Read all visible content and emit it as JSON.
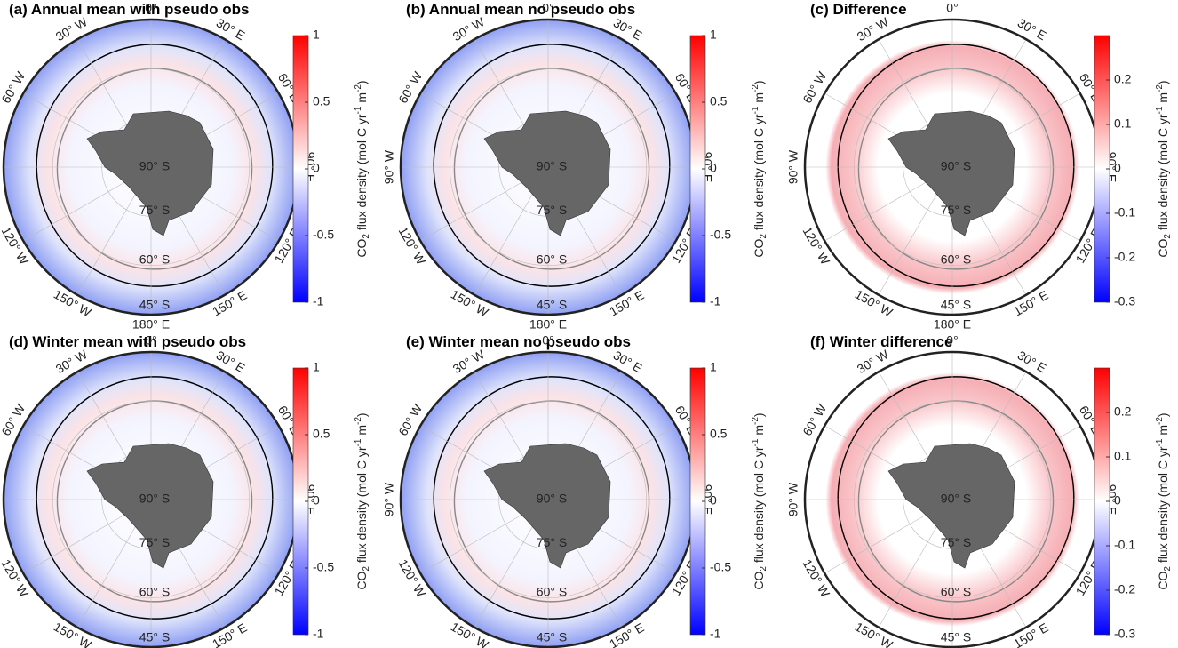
{
  "panels": [
    {
      "title": "(a) Annual mean with pseudo obs",
      "kind": "mean",
      "colorbar": {
        "lim": [
          -1,
          1
        ],
        "ticks": [
          1,
          0.5,
          0,
          -0.5,
          -1
        ]
      }
    },
    {
      "title": "(b) Annual mean no pseudo obs",
      "kind": "mean",
      "colorbar": {
        "lim": [
          -1,
          1
        ],
        "ticks": [
          1,
          0.5,
          0,
          -0.5,
          -1
        ]
      }
    },
    {
      "title": "(c) Difference",
      "kind": "difference",
      "colorbar": {
        "lim": [
          -0.3,
          0.3
        ],
        "ticks": [
          0.2,
          0.1,
          0,
          -0.1,
          -0.2,
          -0.3
        ]
      }
    },
    {
      "title": "(d) Winter mean with pseudo obs",
      "kind": "mean",
      "colorbar": {
        "lim": [
          -1,
          1
        ],
        "ticks": [
          1,
          0.5,
          0,
          -0.5,
          -1
        ]
      }
    },
    {
      "title": "(e) Winter mean no pseudo obs",
      "kind": "mean",
      "colorbar": {
        "lim": [
          -1,
          1
        ],
        "ticks": [
          1,
          0.5,
          0,
          -0.5,
          -1
        ]
      }
    },
    {
      "title": "(f) Winter difference",
      "kind": "difference",
      "colorbar": {
        "lim": [
          -0.3,
          0.3
        ],
        "ticks": [
          0.2,
          0.1,
          0,
          -0.1,
          -0.2,
          -0.3
        ]
      }
    }
  ],
  "colorbar_label": {
    "base": "CO",
    "sub": "2",
    "mid": " flux density (mol C yr",
    "sup1": "-1",
    "space": " m",
    "sup2": "-2",
    "end": ")"
  },
  "longitude_labels": [
    "0°",
    "30° E",
    "60° E",
    "90° E",
    "120° E",
    "150° E",
    "180° E",
    "150° W",
    "120° W",
    "90° W",
    "60° W",
    "30° W"
  ],
  "latitude_labels": [
    "90° S",
    "75° S",
    "60° S",
    "45° S"
  ]
}
